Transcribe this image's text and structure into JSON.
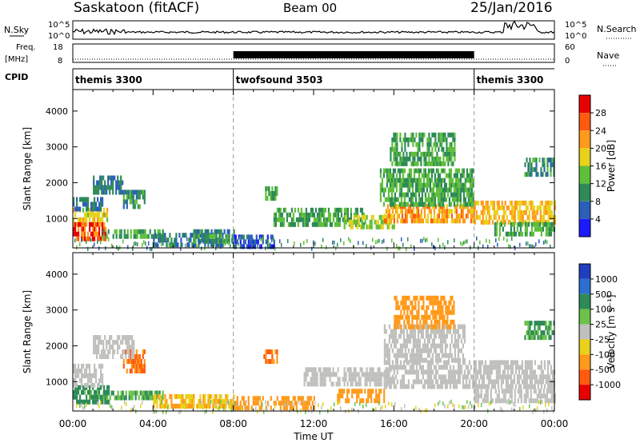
{
  "header": {
    "station": "Saskatoon (fitACF)",
    "beam": "Beam 00",
    "date": "25/Jan/2016"
  },
  "top_panels": {
    "nsky_label": "N.Sky",
    "nsearch_label": "N.Search",
    "noise_ticks": [
      "10^5",
      "10^0"
    ],
    "freq_label_1": "Freq.",
    "freq_label_2": "[MHz]",
    "freq_ticks": [
      "18",
      "8"
    ],
    "nave_label": "Nave",
    "nave_ticks": [
      "60",
      "0"
    ],
    "cpid_label": "CPID"
  },
  "cpid_segments": [
    {
      "name": "themis 3300",
      "start_hour": 0,
      "end_hour": 8
    },
    {
      "name": "twofsound 3503",
      "start_hour": 8,
      "end_hour": 20
    },
    {
      "name": "themis 3300",
      "start_hour": 20,
      "end_hour": 24
    }
  ],
  "chart_data": [
    {
      "type": "heatmap",
      "parameter": "Power",
      "ylabel": "Slant Range [km]",
      "xlabel": "Time UT",
      "xlim": [
        0,
        24
      ],
      "ylim": [
        180,
        4600
      ],
      "x_ticks": [
        "00:00",
        "04:00",
        "08:00",
        "12:00",
        "16:00",
        "20:00",
        "00:00"
      ],
      "y_ticks": [
        1000,
        2000,
        3000,
        4000
      ],
      "colorbar": {
        "label": "Power [dB]",
        "ticks": [
          "4",
          "8",
          "12",
          "16",
          "20",
          "24",
          "28"
        ],
        "colors": [
          "#1a1aff",
          "#2c5fb8",
          "#2e8b57",
          "#5fbf3a",
          "#e8d21a",
          "#ff9a1a",
          "#ff5a10",
          "#e80000"
        ]
      },
      "regions": [
        {
          "t": [
            0.0,
            1.6
          ],
          "r": [
            400,
            900
          ],
          "value": 27
        },
        {
          "t": [
            0.0,
            1.7
          ],
          "r": [
            900,
            1300
          ],
          "value": 20
        },
        {
          "t": [
            0.0,
            1.5
          ],
          "r": [
            1300,
            1600
          ],
          "value": 10
        },
        {
          "t": [
            1.5,
            4.5
          ],
          "r": [
            450,
            700
          ],
          "value": 14
        },
        {
          "t": [
            2.5,
            3.6
          ],
          "r": [
            1300,
            1800
          ],
          "value": 12
        },
        {
          "t": [
            1.0,
            2.5
          ],
          "r": [
            1700,
            2200
          ],
          "value": 10
        },
        {
          "t": [
            4.0,
            7.5
          ],
          "r": [
            300,
            600
          ],
          "value": 10
        },
        {
          "t": [
            6.0,
            8.0
          ],
          "r": [
            400,
            700
          ],
          "value": 12
        },
        {
          "t": [
            8.0,
            10.0
          ],
          "r": [
            250,
            550
          ],
          "value": 7
        },
        {
          "t": [
            10.0,
            14.5
          ],
          "r": [
            800,
            1300
          ],
          "value": 14
        },
        {
          "t": [
            13.5,
            16.0
          ],
          "r": [
            700,
            1100
          ],
          "value": 18
        },
        {
          "t": [
            15.5,
            20.0
          ],
          "r": [
            900,
            1400
          ],
          "value": 24
        },
        {
          "t": [
            15.3,
            20.0
          ],
          "r": [
            1400,
            2400
          ],
          "value": 14
        },
        {
          "t": [
            15.8,
            19.0
          ],
          "r": [
            2500,
            3400
          ],
          "value": 14
        },
        {
          "t": [
            20.0,
            24.0
          ],
          "r": [
            900,
            1500
          ],
          "value": 22
        },
        {
          "t": [
            21.0,
            24.0
          ],
          "r": [
            500,
            900
          ],
          "value": 14
        },
        {
          "t": [
            22.5,
            24.0
          ],
          "r": [
            2200,
            2700
          ],
          "value": 12
        },
        {
          "t": [
            9.5,
            10.2
          ],
          "r": [
            1500,
            1900
          ],
          "value": 14
        }
      ]
    },
    {
      "type": "heatmap",
      "parameter": "Velocity",
      "ylabel": "Slant Range [km]",
      "xlabel": "Time UT",
      "xlim": [
        0,
        24
      ],
      "ylim": [
        180,
        4600
      ],
      "x_ticks": [
        "00:00",
        "04:00",
        "08:00",
        "12:00",
        "16:00",
        "20:00",
        "00:00"
      ],
      "y_ticks": [
        1000,
        2000,
        3000,
        4000
      ],
      "colorbar": {
        "label": "Velocity [m s⁻¹]",
        "ticks": [
          "1000",
          "500",
          "100",
          "25",
          "-25",
          "-100",
          "-500",
          "-1000"
        ],
        "colors": [
          "#1f3fc0",
          "#2c6fd0",
          "#2e8b57",
          "#6cc24a",
          "#c0c0bc",
          "#e8d21a",
          "#ff9a1a",
          "#ff5a10",
          "#e80000"
        ]
      },
      "regions": [
        {
          "t": [
            0.0,
            1.8
          ],
          "r": [
            400,
            900
          ],
          "value": 80
        },
        {
          "t": [
            0.0,
            1.5
          ],
          "r": [
            900,
            1500
          ],
          "value": 0
        },
        {
          "t": [
            1.5,
            4.5
          ],
          "r": [
            500,
            750
          ],
          "value": 60
        },
        {
          "t": [
            2.5,
            3.6
          ],
          "r": [
            1300,
            1900
          ],
          "value": -300
        },
        {
          "t": [
            1.0,
            3.0
          ],
          "r": [
            1700,
            2300
          ],
          "value": 0
        },
        {
          "t": [
            4.0,
            8.0
          ],
          "r": [
            300,
            650
          ],
          "value": -60
        },
        {
          "t": [
            8.0,
            12.0
          ],
          "r": [
            250,
            600
          ],
          "value": -200
        },
        {
          "t": [
            11.5,
            16.0
          ],
          "r": [
            900,
            1400
          ],
          "value": 0
        },
        {
          "t": [
            13.0,
            15.5
          ],
          "r": [
            400,
            800
          ],
          "value": -150
        },
        {
          "t": [
            15.5,
            24.0
          ],
          "r": [
            900,
            1600
          ],
          "value": 0
        },
        {
          "t": [
            15.5,
            19.5
          ],
          "r": [
            1600,
            2600
          ],
          "value": 0
        },
        {
          "t": [
            16.0,
            19.0
          ],
          "r": [
            2500,
            3400
          ],
          "value": -200
        },
        {
          "t": [
            22.5,
            24.0
          ],
          "r": [
            2200,
            2700
          ],
          "value": 60
        },
        {
          "t": [
            9.5,
            10.2
          ],
          "r": [
            1500,
            1900
          ],
          "value": -300
        },
        {
          "t": [
            20.0,
            24.0
          ],
          "r": [
            400,
            800
          ],
          "value": 0
        }
      ]
    }
  ]
}
